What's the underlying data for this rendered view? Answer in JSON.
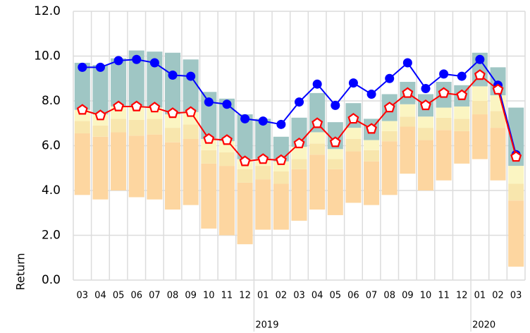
{
  "chart_data": {
    "type": "bar",
    "y_label": "Return",
    "categories": [
      "03",
      "04",
      "05",
      "06",
      "07",
      "08",
      "09",
      "10",
      "11",
      "12",
      "01",
      "02",
      "03",
      "04",
      "05",
      "06",
      "07",
      "08",
      "09",
      "10",
      "11",
      "12",
      "01",
      "02",
      "03"
    ],
    "groups": [
      {
        "label": "2019",
        "start": 10
      },
      {
        "label": "2020",
        "start": 22
      }
    ],
    "bar_base": [
      3.8,
      3.6,
      4.0,
      3.7,
      3.6,
      3.15,
      3.35,
      2.3,
      2.0,
      1.6,
      2.25,
      2.25,
      2.65,
      3.15,
      2.9,
      3.45,
      3.35,
      3.8,
      4.75,
      4.0,
      4.45,
      5.2,
      5.4,
      4.45,
      0.6
    ],
    "series": [
      {
        "type": "bar",
        "color": "#fdd6a0",
        "values": [
          2.75,
          2.8,
          2.6,
          2.75,
          2.9,
          3.0,
          2.95,
          2.9,
          3.1,
          2.75,
          2.25,
          2.05,
          2.3,
          2.45,
          2.05,
          2.3,
          1.95,
          2.4,
          2.1,
          2.25,
          2.25,
          1.45,
          2.0,
          2.35,
          2.95
        ]
      },
      {
        "type": "bar",
        "color": "#f8e6ad",
        "values": [
          0.55,
          0.5,
          0.6,
          0.7,
          0.7,
          0.65,
          0.65,
          0.6,
          0.6,
          0.6,
          0.6,
          0.55,
          0.45,
          0.5,
          0.45,
          0.55,
          0.5,
          0.45,
          0.45,
          0.55,
          0.55,
          0.55,
          0.6,
          0.75,
          0.75
        ]
      },
      {
        "type": "bar",
        "color": "#fbf5c2",
        "values": [
          0.5,
          0.5,
          0.55,
          0.6,
          0.5,
          0.6,
          0.55,
          0.5,
          0.5,
          0.45,
          0.3,
          0.45,
          0.55,
          0.5,
          0.45,
          0.5,
          0.45,
          0.45,
          0.55,
          0.5,
          0.45,
          0.55,
          0.65,
          0.7,
          0.8
        ]
      },
      {
        "type": "bar",
        "color": "#9fc6c4",
        "values": [
          2.1,
          2.2,
          2.15,
          2.5,
          2.5,
          2.75,
          2.35,
          2.1,
          1.9,
          2.0,
          1.8,
          1.1,
          1.3,
          1.75,
          1.2,
          1.1,
          0.95,
          1.2,
          1.0,
          1.0,
          1.15,
          0.95,
          1.5,
          1.25,
          2.6
        ]
      },
      {
        "type": "line",
        "marker": "circle",
        "color": "#0000ff",
        "values": [
          9.5,
          9.5,
          9.8,
          9.85,
          9.7,
          9.15,
          9.1,
          7.95,
          7.85,
          7.2,
          7.1,
          6.95,
          7.95,
          8.75,
          7.8,
          8.8,
          8.3,
          9.0,
          9.7,
          8.55,
          9.2,
          9.1,
          9.85,
          8.7,
          5.6
        ]
      },
      {
        "type": "line",
        "marker": "pentagon",
        "color": "#ff0000",
        "values": [
          7.6,
          7.35,
          7.75,
          7.75,
          7.7,
          7.45,
          7.5,
          6.3,
          6.25,
          5.3,
          5.4,
          5.35,
          6.1,
          7.0,
          6.15,
          7.2,
          6.75,
          7.7,
          8.35,
          7.8,
          8.35,
          8.25,
          9.15,
          8.5,
          5.5
        ]
      }
    ],
    "ylim": [
      0,
      12
    ],
    "yticks": [
      {
        "value": 0,
        "label": "0.0"
      },
      {
        "value": 2,
        "label": "2.0"
      },
      {
        "value": 4,
        "label": "4.0"
      },
      {
        "value": 6,
        "label": "6.0"
      },
      {
        "value": 8,
        "label": "8.0"
      },
      {
        "value": 10,
        "label": "10.0"
      },
      {
        "value": 12,
        "label": "12.0"
      }
    ],
    "grid": true
  }
}
